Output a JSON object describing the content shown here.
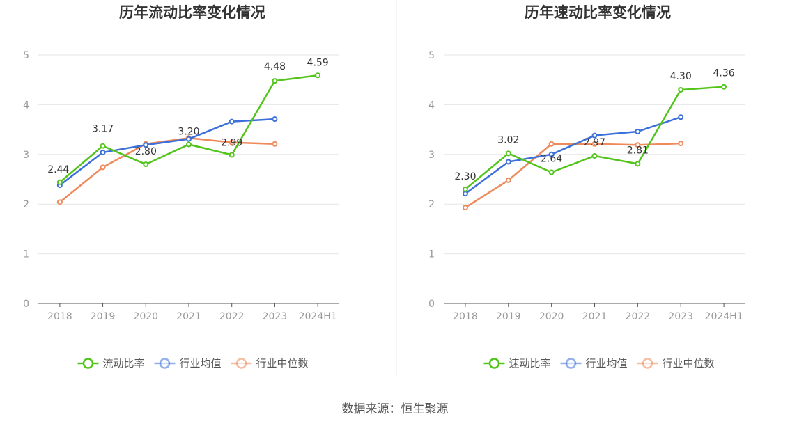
{
  "source_text": "数据来源：恒生聚源",
  "chart_data": [
    {
      "type": "line",
      "title": "历年流动比率变化情况",
      "x": [
        "2018",
        "2019",
        "2020",
        "2021",
        "2022",
        "2023",
        "2024H1"
      ],
      "ylim": [
        0,
        5
      ],
      "yticks": [
        "0",
        "1",
        "2",
        "3",
        "4",
        "5"
      ],
      "grid": true,
      "legend_position": "bottom",
      "series": [
        {
          "name": "流动比率",
          "color": "#52c41a",
          "values": [
            2.44,
            3.17,
            2.8,
            3.2,
            2.99,
            4.48,
            4.59
          ],
          "labels": [
            "2.44",
            "3.17",
            "2.80",
            "3.20",
            "2.99",
            "4.48",
            "4.59"
          ]
        },
        {
          "name": "行业均值",
          "color": "#3b6fd9",
          "values": [
            2.38,
            3.04,
            3.19,
            3.31,
            3.66,
            3.71,
            null
          ]
        },
        {
          "name": "行业中位数",
          "color": "#ee8a5b",
          "values": [
            2.04,
            2.74,
            3.21,
            3.33,
            3.24,
            3.21,
            null
          ]
        }
      ]
    },
    {
      "type": "line",
      "title": "历年速动比率变化情况",
      "x": [
        "2018",
        "2019",
        "2020",
        "2021",
        "2022",
        "2023",
        "2024H1"
      ],
      "ylim": [
        0,
        5
      ],
      "yticks": [
        "0",
        "1",
        "2",
        "3",
        "4",
        "5"
      ],
      "grid": true,
      "legend_position": "bottom",
      "series": [
        {
          "name": "速动比率",
          "color": "#52c41a",
          "values": [
            2.3,
            3.02,
            2.64,
            2.97,
            2.81,
            4.3,
            4.36
          ],
          "labels": [
            "2.30",
            "3.02",
            "2.64",
            "2.97",
            "2.81",
            "4.30",
            "4.36"
          ]
        },
        {
          "name": "行业均值",
          "color": "#3b6fd9",
          "values": [
            2.21,
            2.85,
            3.0,
            3.38,
            3.46,
            3.75,
            null
          ]
        },
        {
          "name": "行业中位数",
          "color": "#ee8a5b",
          "values": [
            1.93,
            2.48,
            3.21,
            3.21,
            3.19,
            3.22,
            null
          ]
        }
      ]
    }
  ]
}
